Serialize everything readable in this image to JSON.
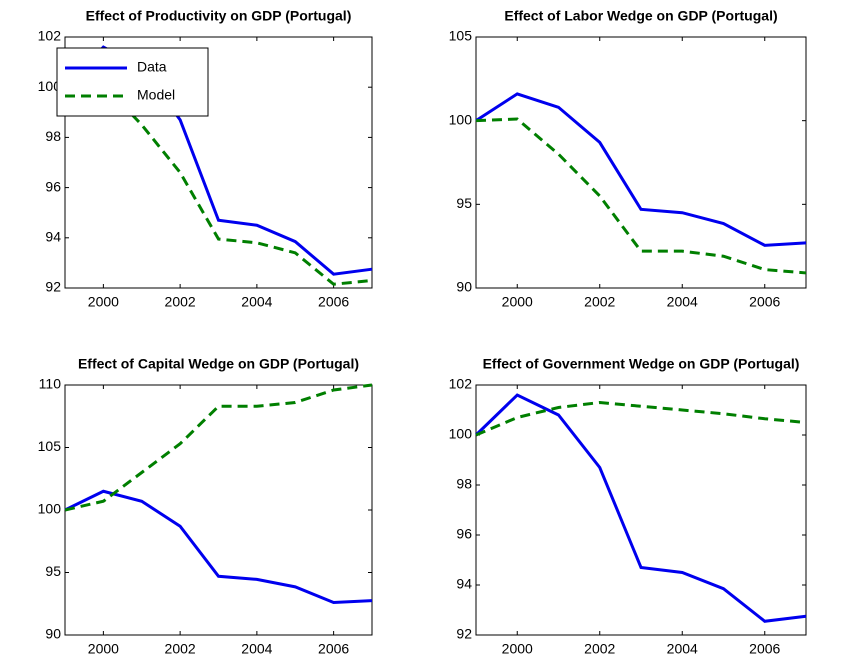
{
  "chart_data": [
    {
      "type": "line",
      "title": "Effect of Productivity on GDP (Portugal)",
      "x": [
        1999,
        2000,
        2001,
        2002,
        2003,
        2004,
        2005,
        2006,
        2007
      ],
      "series": [
        {
          "name": "Data",
          "color": "#0000ee",
          "dash": "solid",
          "values": [
            100,
            101.6,
            100.8,
            98.7,
            94.7,
            94.5,
            93.85,
            92.55,
            92.75
          ]
        },
        {
          "name": "Model",
          "color": "#007f00",
          "dash": "dashed",
          "values": [
            100,
            100.1,
            98.5,
            96.6,
            93.95,
            93.8,
            93.4,
            92.15,
            92.3
          ]
        }
      ],
      "xlim": [
        1999,
        2007
      ],
      "xticks": [
        2000,
        2002,
        2004,
        2006
      ],
      "ylim": [
        92,
        102
      ],
      "yticks": [
        92,
        94,
        96,
        98,
        100,
        102
      ],
      "legend": "upper left"
    },
    {
      "type": "line",
      "title": "Effect of Labor Wedge on GDP (Portugal)",
      "x": [
        1999,
        2000,
        2001,
        2002,
        2003,
        2004,
        2005,
        2006,
        2007
      ],
      "series": [
        {
          "color": "#0000ee",
          "dash": "solid",
          "values": [
            100,
            101.6,
            100.8,
            98.7,
            94.7,
            94.5,
            93.85,
            92.55,
            92.7
          ]
        },
        {
          "color": "#007f00",
          "dash": "dashed",
          "values": [
            100,
            100.1,
            98,
            95.5,
            92.2,
            92.2,
            91.9,
            91.1,
            90.9
          ]
        }
      ],
      "xlim": [
        1999,
        2007
      ],
      "xticks": [
        2000,
        2002,
        2004,
        2006
      ],
      "ylim": [
        90,
        105
      ],
      "yticks": [
        90,
        95,
        100,
        105
      ]
    },
    {
      "type": "line",
      "title": "Effect of Capital Wedge on GDP (Portugal)",
      "x": [
        1999,
        2000,
        2001,
        2002,
        2003,
        2004,
        2005,
        2006,
        2007
      ],
      "series": [
        {
          "color": "#0000ee",
          "dash": "solid",
          "values": [
            100,
            101.5,
            100.7,
            98.7,
            94.7,
            94.45,
            93.85,
            92.6,
            92.75
          ]
        },
        {
          "color": "#007f00",
          "dash": "dashed",
          "values": [
            100,
            100.7,
            103,
            105.3,
            108.3,
            108.3,
            108.6,
            109.6,
            110
          ]
        }
      ],
      "xlim": [
        1999,
        2007
      ],
      "xticks": [
        2000,
        2002,
        2004,
        2006
      ],
      "ylim": [
        90,
        110
      ],
      "yticks": [
        90,
        95,
        100,
        105,
        110
      ]
    },
    {
      "type": "line",
      "title": "Effect of Government Wedge on GDP (Portugal)",
      "x": [
        1999,
        2000,
        2001,
        2002,
        2003,
        2004,
        2005,
        2006,
        2007
      ],
      "series": [
        {
          "color": "#0000ee",
          "dash": "solid",
          "values": [
            100,
            101.6,
            100.8,
            98.7,
            94.7,
            94.5,
            93.85,
            92.55,
            92.75
          ]
        },
        {
          "color": "#007f00",
          "dash": "dashed",
          "values": [
            100,
            100.7,
            101.1,
            101.3,
            101.15,
            101.0,
            100.85,
            100.65,
            100.5
          ]
        }
      ],
      "xlim": [
        1999,
        2007
      ],
      "xticks": [
        2000,
        2002,
        2004,
        2006
      ],
      "ylim": [
        92,
        102
      ],
      "yticks": [
        92,
        94,
        96,
        98,
        100,
        102
      ]
    }
  ]
}
